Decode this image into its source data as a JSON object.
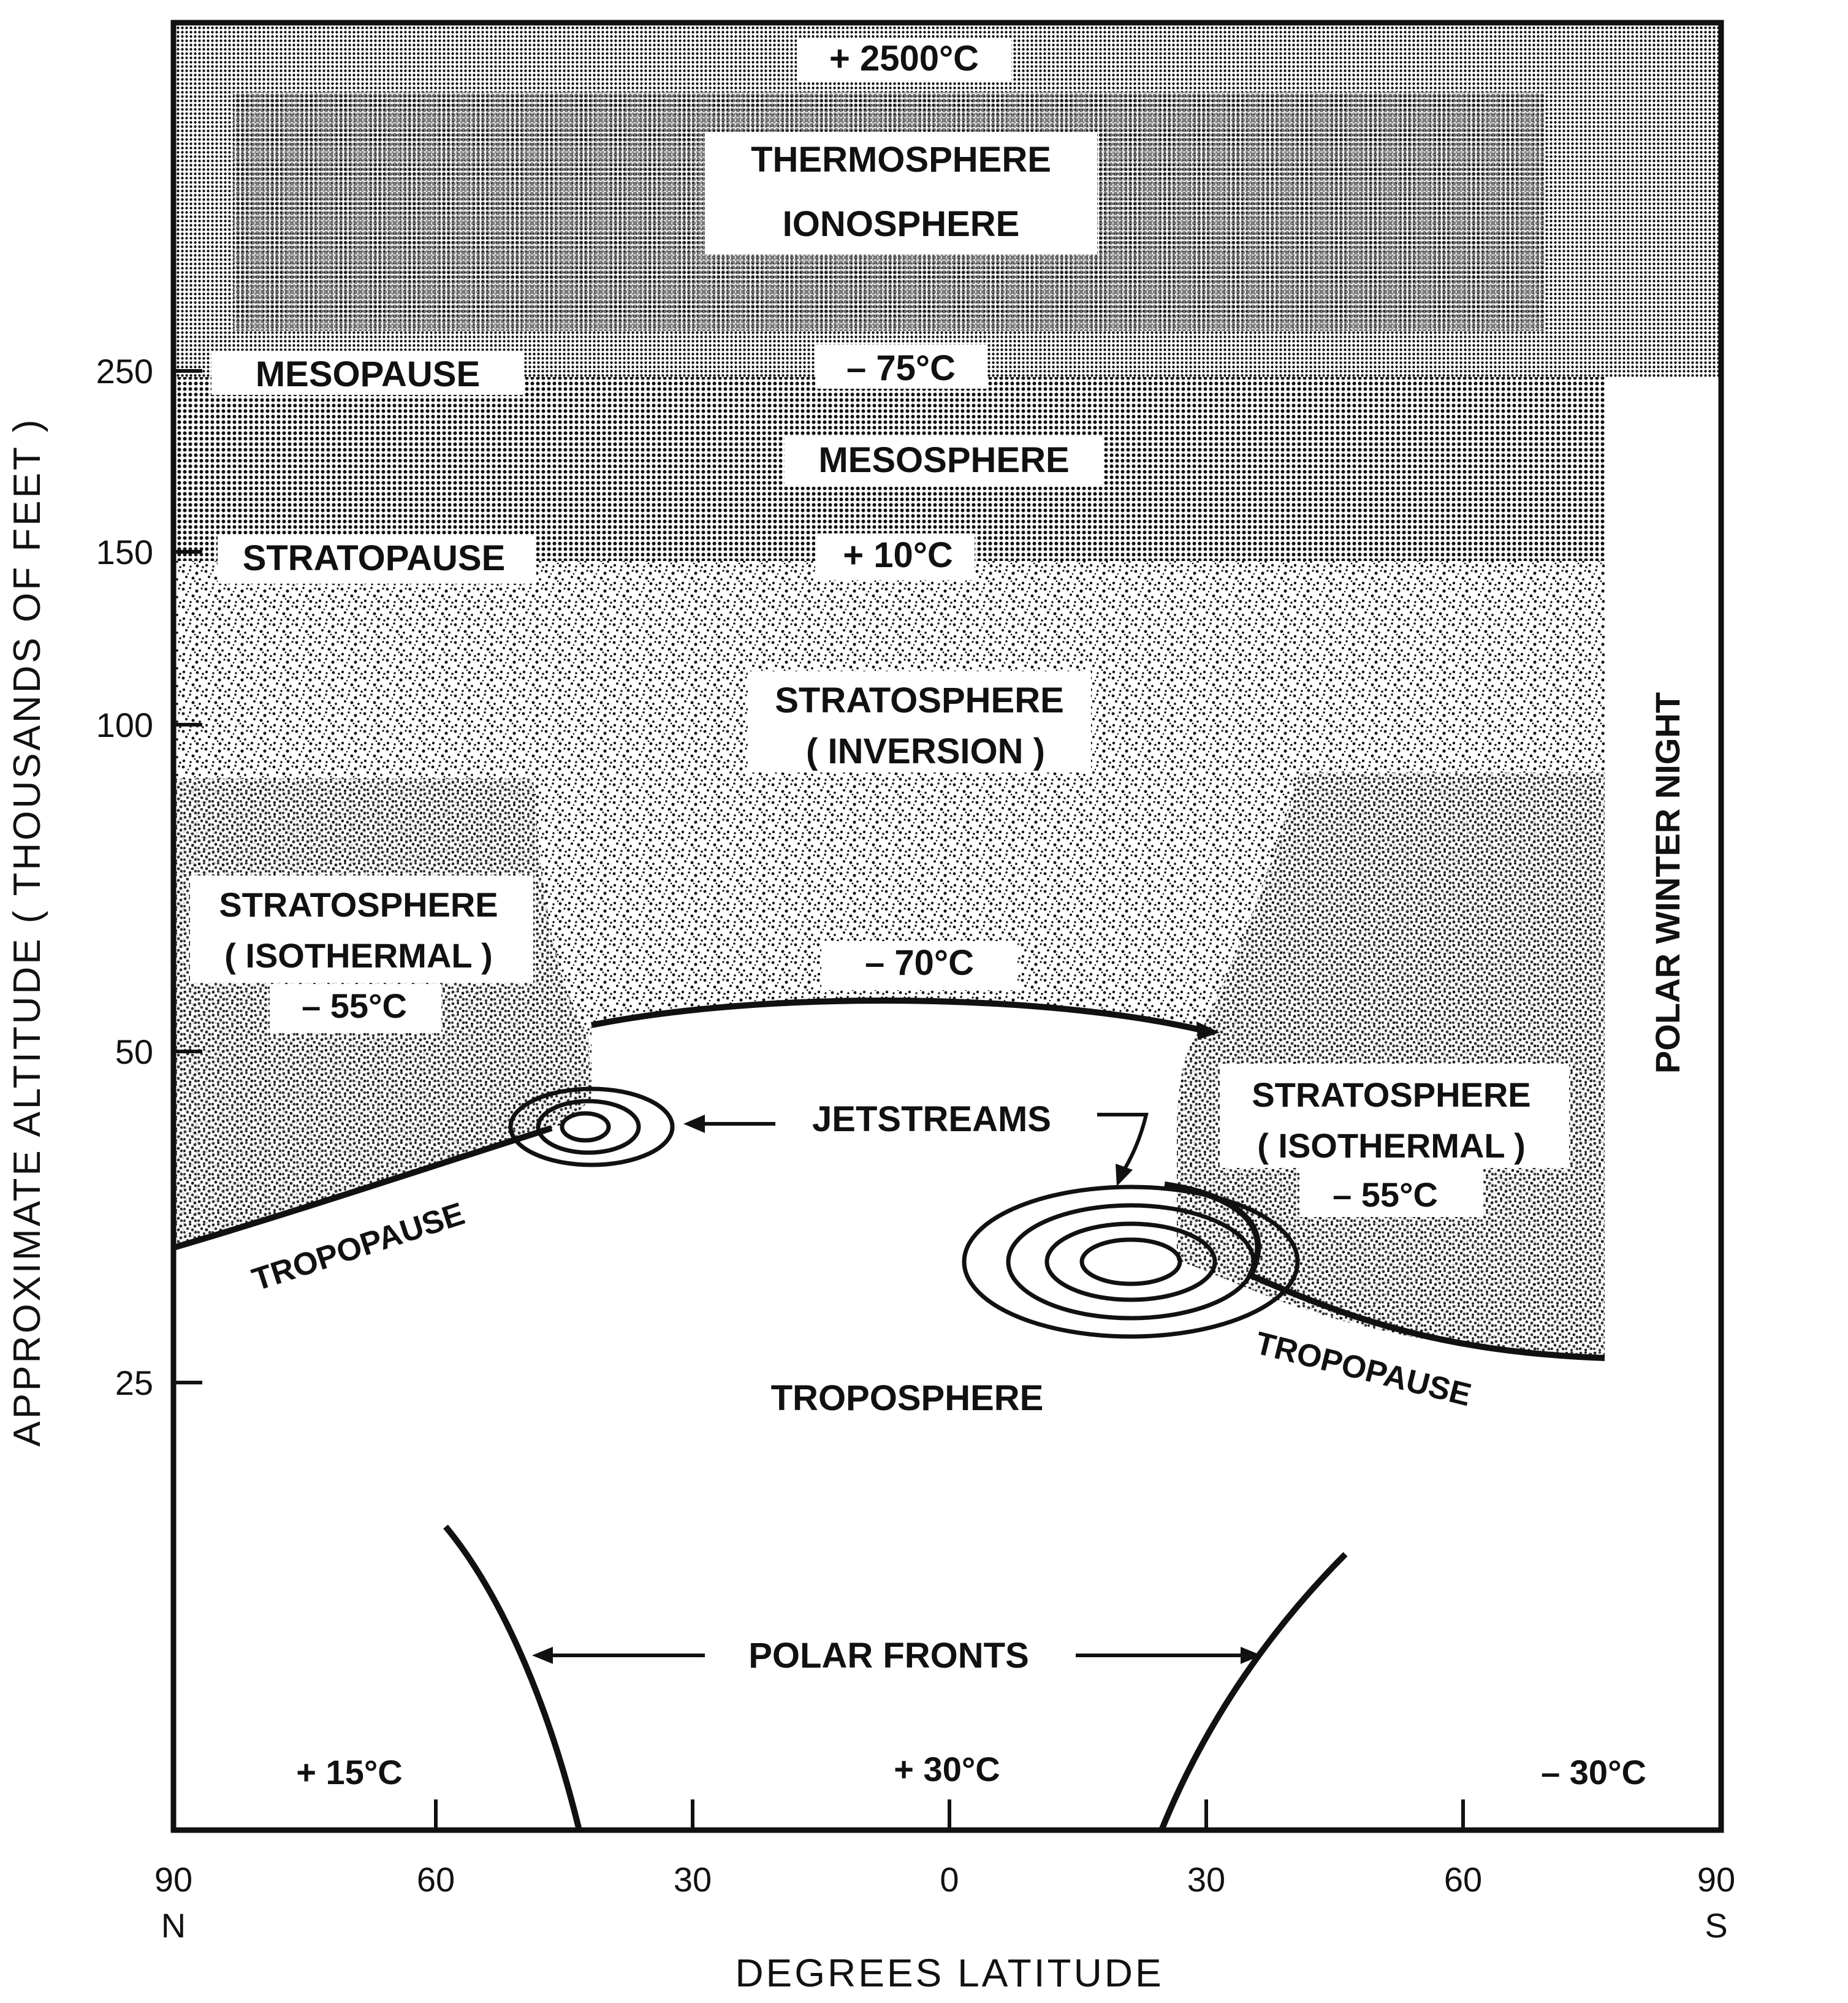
{
  "y_axis": {
    "label": "APPROXIMATE ALTITUDE ( THOUSANDS OF FEET )",
    "ticks": [
      "250",
      "150",
      "100",
      "50",
      "25"
    ]
  },
  "x_axis": {
    "label": "DEGREES LATITUDE",
    "ticks": [
      "90",
      "60",
      "30",
      "0",
      "30",
      "60",
      "90"
    ],
    "north": "N",
    "south": "S"
  },
  "layers": {
    "thermosphere_temp": "+ 2500°C",
    "thermosphere": "THERMOSPHERE",
    "ionosphere": "IONOSPHERE",
    "mesopause": "MESOPAUSE",
    "mesopause_temp": "– 75°C",
    "mesosphere": "MESOSPHERE",
    "stratopause": "STRATOPAUSE",
    "stratopause_temp": "+ 10°C",
    "stratosphere_inversion_1": "STRATOSPHERE",
    "stratosphere_inversion_2": "( INVERSION )",
    "strat_iso_left_1": "STRATOSPHERE",
    "strat_iso_left_2": "( ISOTHERMAL )",
    "strat_iso_left_temp": "– 55°C",
    "tropopause_center_temp": "– 70°C",
    "jetstreams": "JETSTREAMS",
    "strat_iso_right_1": "STRATOSPHERE",
    "strat_iso_right_2": "( ISOTHERMAL )",
    "strat_iso_right_temp": "– 55°C",
    "tropopause_left": "TROPOPAUSE",
    "tropopause_right": "TROPOPAUSE",
    "troposphere": "TROPOSPHERE",
    "polar_winter_night": "POLAR WINTER NIGHT",
    "polar_fronts": "POLAR FRONTS",
    "surface_temp_left": "+ 15°C",
    "surface_temp_center": "+ 30°C",
    "surface_temp_right": "– 30°C"
  },
  "colors": {
    "ink": "#111111",
    "paper": "#ffffff"
  }
}
